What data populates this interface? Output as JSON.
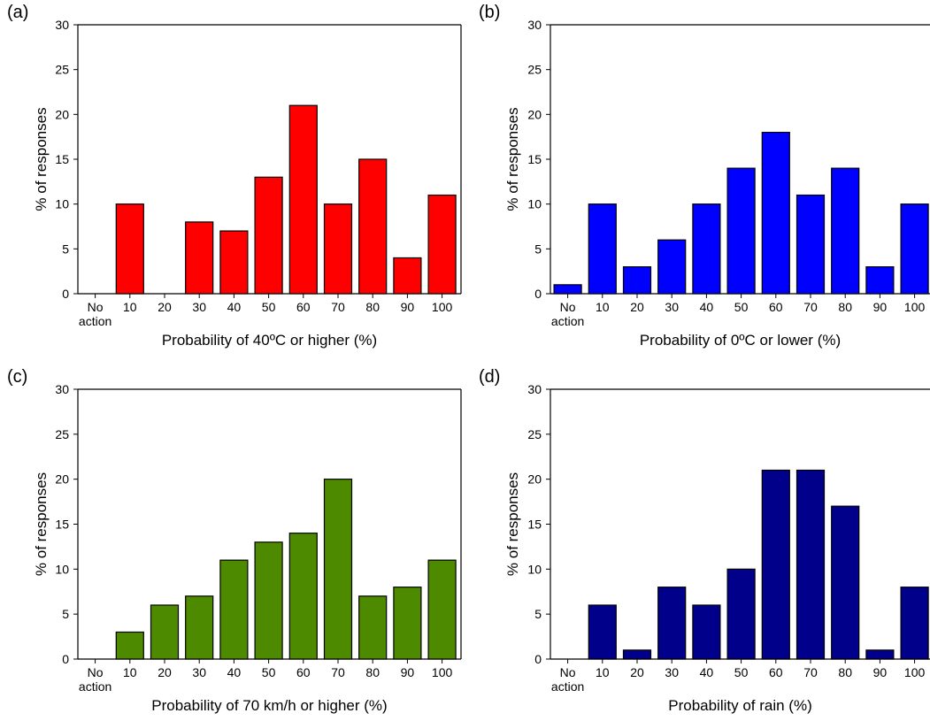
{
  "chart_data": [
    {
      "panel": "(a)",
      "type": "bar",
      "categories": [
        "No action",
        "10",
        "20",
        "30",
        "40",
        "50",
        "60",
        "70",
        "80",
        "90",
        "100"
      ],
      "values": [
        0,
        10,
        0,
        8,
        7,
        13,
        21,
        10,
        15,
        4,
        11
      ],
      "xlabel": "Probability of 40ºC or higher (%)",
      "ylabel": "% of responses",
      "ylim": [
        0,
        30
      ],
      "yticks": [
        0,
        5,
        10,
        15,
        20,
        25,
        30
      ],
      "color": "#ff0000",
      "grid": false
    },
    {
      "panel": "(b)",
      "type": "bar",
      "categories": [
        "No action",
        "10",
        "20",
        "30",
        "40",
        "50",
        "60",
        "70",
        "80",
        "90",
        "100"
      ],
      "values": [
        1,
        10,
        3,
        6,
        10,
        14,
        18,
        11,
        14,
        3,
        10
      ],
      "xlabel": "Probability of 0ºC or lower (%)",
      "ylabel": "% of responses",
      "ylim": [
        0,
        30
      ],
      "yticks": [
        0,
        5,
        10,
        15,
        20,
        25,
        30
      ],
      "color": "#0000ff",
      "grid": false
    },
    {
      "panel": "(c)",
      "type": "bar",
      "categories": [
        "No action",
        "10",
        "20",
        "30",
        "40",
        "50",
        "60",
        "70",
        "80",
        "90",
        "100"
      ],
      "values": [
        0,
        3,
        6,
        7,
        11,
        13,
        14,
        20,
        7,
        8,
        11
      ],
      "xlabel": "Probability of 70 km/h or higher (%)",
      "ylabel": "% of responses",
      "ylim": [
        0,
        30
      ],
      "yticks": [
        0,
        5,
        10,
        15,
        20,
        25,
        30
      ],
      "color": "#4e8a00",
      "grid": false
    },
    {
      "panel": "(d)",
      "type": "bar",
      "categories": [
        "No action",
        "10",
        "20",
        "30",
        "40",
        "50",
        "60",
        "70",
        "80",
        "90",
        "100"
      ],
      "values": [
        0,
        6,
        1,
        8,
        6,
        10,
        21,
        21,
        17,
        1,
        8
      ],
      "xlabel": "Probability of rain (%)",
      "ylabel": "% of responses",
      "ylim": [
        0,
        30
      ],
      "yticks": [
        0,
        5,
        10,
        15,
        20,
        25,
        30
      ],
      "color": "#00008b",
      "grid": false
    }
  ]
}
